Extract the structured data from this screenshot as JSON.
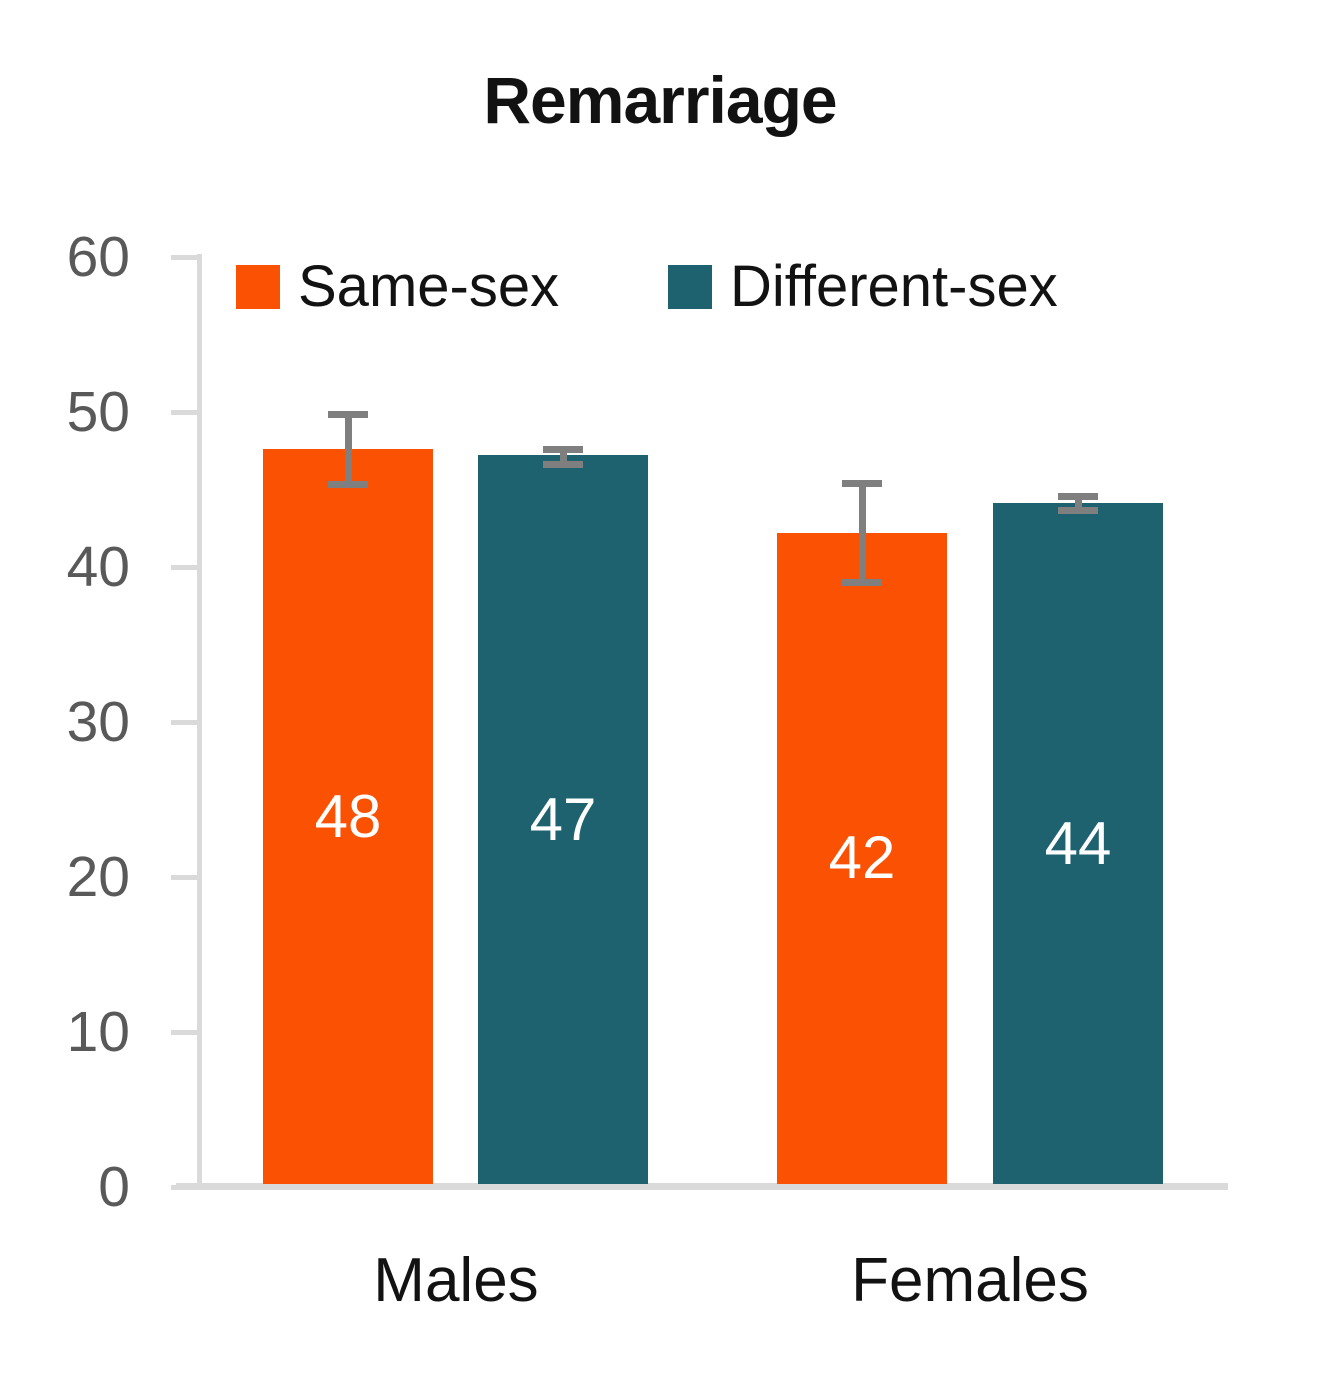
{
  "title": "Remarriage",
  "chart_data": {
    "type": "bar",
    "title": "Remarriage",
    "categories": [
      "Males",
      "Females"
    ],
    "series": [
      {
        "name": "Same-sex",
        "color": "#fb5103",
        "values": [
          47.6,
          42.2
        ],
        "data_labels": [
          "48",
          "42"
        ],
        "error_low": [
          45.3,
          39.0
        ],
        "error_high": [
          49.9,
          45.4
        ]
      },
      {
        "name": "Different-sex",
        "color": "#1d626e",
        "values": [
          47.2,
          44.1
        ],
        "data_labels": [
          "47",
          "44"
        ],
        "error_low": [
          46.6,
          43.6
        ],
        "error_high": [
          47.6,
          44.6
        ]
      }
    ],
    "ylim": [
      0,
      60
    ],
    "y_tick_step": 10,
    "y_tick_labels": [
      "0",
      "10",
      "20",
      "30",
      "40",
      "50",
      "60"
    ],
    "grid": false,
    "legend_position": "top",
    "value_label_position": "inside-center",
    "value_label_color": "#ffffff",
    "error_bar_color": "#7f7f7f",
    "axis_color": "#dadada",
    "tick_label_color": "#595959"
  }
}
